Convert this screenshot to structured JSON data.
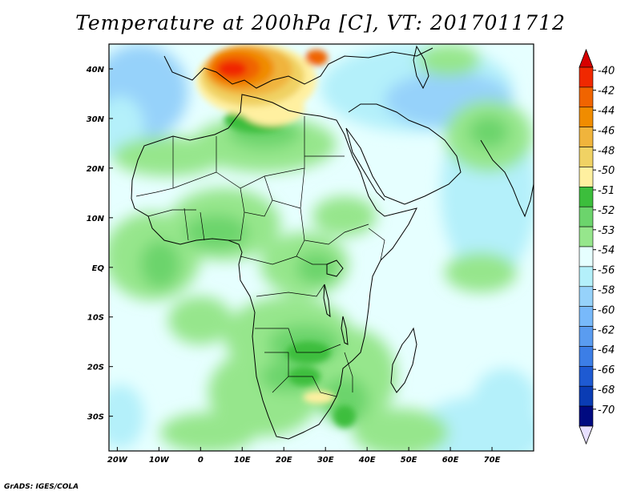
{
  "title": "Temperature at 200hPa [C], VT: 2017011712",
  "credit": "GrADS: IGES/COLA",
  "map": {
    "lat_labels": [
      "40N",
      "30N",
      "20N",
      "10N",
      "EQ",
      "10S",
      "20S",
      "30S"
    ],
    "lat_values": [
      40,
      30,
      20,
      10,
      0,
      -10,
      -20,
      -30
    ],
    "lon_labels": [
      "20W",
      "10W",
      "0",
      "10E",
      "20E",
      "30E",
      "40E",
      "50E",
      "60E",
      "70E"
    ],
    "lon_values": [
      -20,
      -10,
      0,
      10,
      20,
      30,
      40,
      50,
      60,
      70
    ],
    "lon_range": [
      -22,
      80
    ],
    "lat_range": [
      -37,
      45
    ]
  },
  "colorbar": {
    "labels": [
      "-40",
      "-42",
      "-44",
      "-46",
      "-48",
      "-50",
      "-51",
      "-52",
      "-53",
      "-54",
      "-56",
      "-58",
      "-60",
      "-62",
      "-64",
      "-66",
      "-68",
      "-70"
    ],
    "colors": [
      "#f02800",
      "#f06400",
      "#f08c00",
      "#f0b43c",
      "#f0d264",
      "#fff0a0",
      "#3cbe3c",
      "#6cd46c",
      "#96e68c",
      "#e6ffff",
      "#b4f0fa",
      "#96d2fa",
      "#78b9fa",
      "#5a9cf0",
      "#3c7ee6",
      "#1e5ad2",
      "#0a3cb4",
      "#000a80"
    ],
    "top_arrow_color": "#d70000",
    "bottom_arrow_color": "#e8e0ff"
  }
}
